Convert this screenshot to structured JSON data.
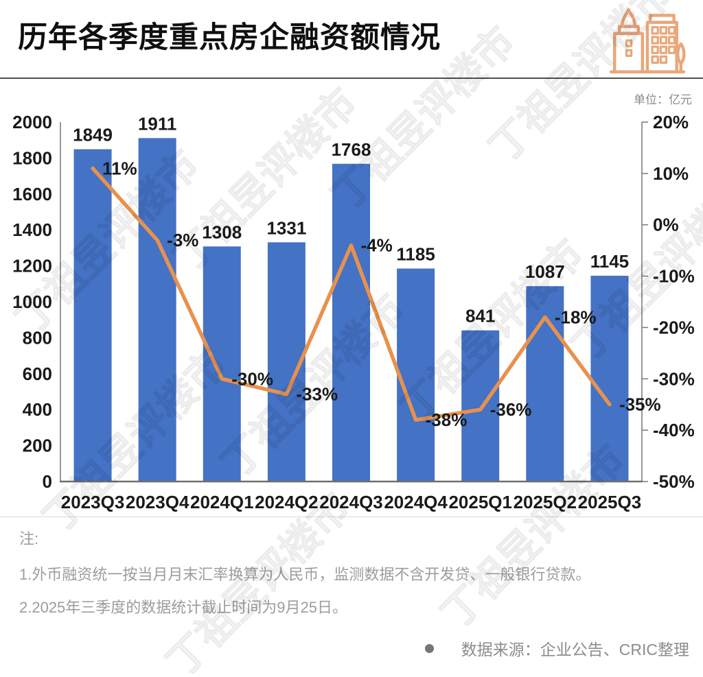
{
  "header": {
    "title": "历年各季度重点房企融资额情况",
    "unit_label": "单位：亿元"
  },
  "chart_data": {
    "type": "bar",
    "combo": "bar+line",
    "title": "历年各季度重点房企融资额情况",
    "unit": "亿元",
    "grid": false,
    "legend": "none",
    "categories": [
      "2023Q3",
      "2023Q4",
      "2024Q1",
      "2024Q2",
      "2024Q3",
      "2024Q4",
      "2025Q1",
      "2025Q2",
      "2025Q3"
    ],
    "series": [
      {
        "type": "bar",
        "axis": "left",
        "color": "#4472C4",
        "values": [
          1849,
          1911,
          1308,
          1331,
          1768,
          1185,
          841,
          1087,
          1145
        ],
        "labels": [
          "1849",
          "1911",
          "1308",
          "1331",
          "1768",
          "1185",
          "841",
          "1087",
          "1145"
        ]
      },
      {
        "type": "line",
        "axis": "right",
        "color": "#E8914E",
        "values": [
          11,
          -3,
          -30,
          -33,
          -4,
          -38,
          -36,
          -18,
          -35
        ],
        "labels": [
          "11%",
          "-3%",
          "-30%",
          "-33%",
          "-4%",
          "-38%",
          "-36%",
          "-18%",
          "-35%"
        ]
      }
    ],
    "left_axis": {
      "min": 0,
      "max": 2000,
      "step": 200,
      "labels": [
        "2000",
        "1800",
        "1600",
        "1400",
        "1200",
        "1000",
        "800",
        "600",
        "400",
        "200",
        "0"
      ]
    },
    "right_axis": {
      "min": -50,
      "max": 20,
      "step": 10,
      "labels": [
        "20%",
        "10%",
        "0%",
        "-10%",
        "-20%",
        "-30%",
        "-40%",
        "-50%"
      ]
    }
  },
  "notes": {
    "heading": "注:",
    "items": [
      "1.外币融资统一按当月月末汇率换算为人民币，监测数据不含开发贷、一般银行贷款。",
      "2.2025年三季度的数据统计截止时间为9月25日。"
    ]
  },
  "footer": {
    "source_label": "数据来源：企业公告、CRIC整理"
  },
  "watermark": {
    "text": "丁祖昱评楼市"
  },
  "colors": {
    "bar": "#4472C4",
    "line": "#E8914E",
    "icon": "#E9A77A",
    "axis": "#7f7f7f",
    "label_text": "#1a1a1a",
    "note_text": "#9c9c9c"
  }
}
